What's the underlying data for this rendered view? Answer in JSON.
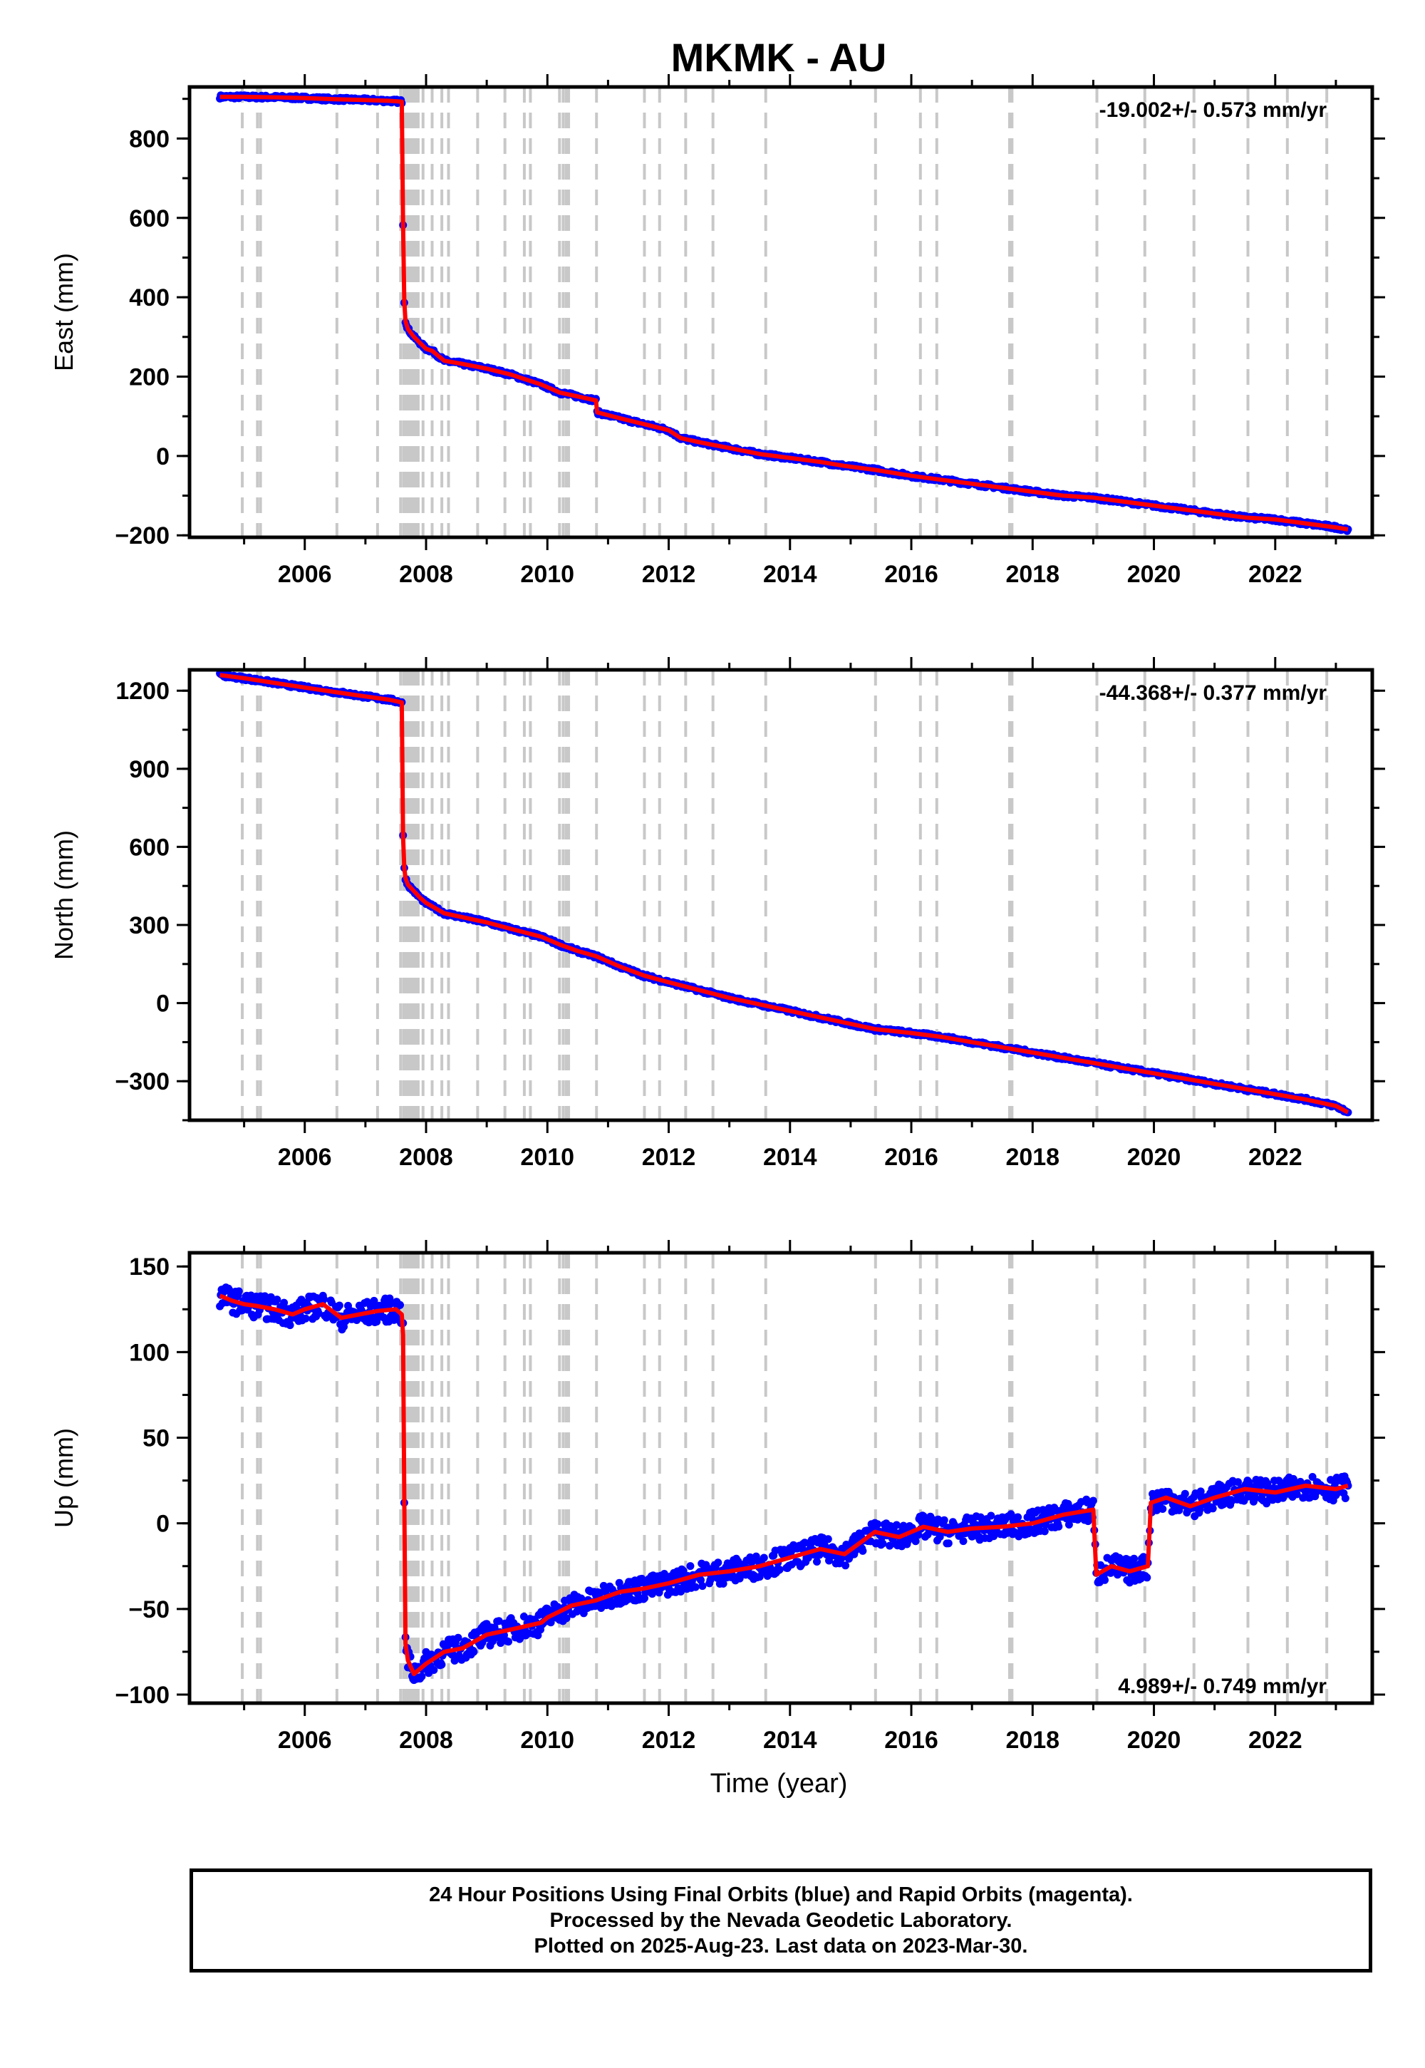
{
  "title": "MKMK - AU",
  "xlabel": "Time (year)",
  "footer": {
    "line1": "24 Hour Positions Using Final Orbits (blue) and Rapid Orbits (magenta).",
    "line2": "Processed by the Nevada Geodetic Laboratory.",
    "line3": "Plotted on 2025-Aug-23. Last data on 2023-Mar-30."
  },
  "colors": {
    "points": "#0000ff",
    "model": "#ff0000",
    "event_lines": "#c8c8c8",
    "frame": "#000000"
  },
  "chart_data": [
    {
      "type": "scatter",
      "panel": "east",
      "ylabel": "East (mm)",
      "rate": "-19.002+/- 0.573 mm/yr",
      "xlim": [
        2004.1,
        2023.6
      ],
      "ylim": [
        -205,
        930
      ],
      "yticks": [
        -200,
        0,
        200,
        400,
        600,
        800
      ],
      "xticks": [
        2006,
        2008,
        2010,
        2012,
        2014,
        2016,
        2018,
        2020,
        2022
      ],
      "grid": false,
      "legend": "none",
      "series": [
        {
          "x": [
            2004.6,
            2005.0,
            2005.5,
            2006.0,
            2006.5,
            2007.0,
            2007.4,
            2007.6,
            2007.62,
            2007.64,
            2007.66,
            2007.7,
            2007.8,
            2007.9,
            2008.0,
            2008.1,
            2008.3,
            2008.6,
            2009.0,
            2009.4,
            2009.9,
            2010.2,
            2010.5,
            2010.8,
            2010.82,
            2011.2,
            2011.6,
            2012.0,
            2012.2,
            2012.5,
            2013.0,
            2013.5,
            2014.0,
            2014.5,
            2014.9,
            2015.4,
            2016.0,
            2016.5,
            2017.0,
            2017.5,
            2018.0,
            2018.5,
            2019.0,
            2019.5,
            2020.0,
            2020.5,
            2021.0,
            2021.5,
            2022.0,
            2022.5,
            2023.0,
            2023.2
          ],
          "y": [
            905,
            905,
            904,
            902,
            899,
            897,
            895,
            893,
            585,
            390,
            340,
            320,
            300,
            285,
            270,
            265,
            240,
            232,
            220,
            205,
            180,
            160,
            150,
            140,
            110,
            95,
            80,
            65,
            45,
            35,
            20,
            5,
            -5,
            -15,
            -25,
            -35,
            -50,
            -60,
            -70,
            -80,
            -90,
            -100,
            -105,
            -115,
            -125,
            -135,
            -145,
            -155,
            -160,
            -170,
            -180,
            -185
          ]
        }
      ],
      "model": {
        "x": [
          2004.6,
          2005.0,
          2005.5,
          2006.0,
          2006.5,
          2007.0,
          2007.4,
          2007.6,
          2007.62,
          2007.64,
          2007.66,
          2007.7,
          2007.8,
          2007.9,
          2008.0,
          2008.1,
          2008.3,
          2008.6,
          2009.0,
          2009.4,
          2009.9,
          2010.2,
          2010.5,
          2010.8,
          2010.82,
          2011.2,
          2011.6,
          2012.0,
          2012.2,
          2012.5,
          2013.0,
          2013.5,
          2014.0,
          2014.5,
          2014.9,
          2015.4,
          2016.0,
          2016.5,
          2017.0,
          2017.5,
          2018.0,
          2018.5,
          2019.0,
          2019.5,
          2020.0,
          2020.5,
          2021.0,
          2021.5,
          2022.0,
          2022.5,
          2023.0,
          2023.2
        ],
        "y": [
          905,
          905,
          904,
          902,
          899,
          897,
          895,
          893,
          585,
          390,
          340,
          320,
          300,
          285,
          270,
          265,
          240,
          232,
          220,
          205,
          180,
          160,
          150,
          140,
          110,
          95,
          80,
          65,
          45,
          35,
          20,
          5,
          -5,
          -15,
          -25,
          -35,
          -50,
          -60,
          -70,
          -80,
          -90,
          -100,
          -105,
          -115,
          -125,
          -135,
          -145,
          -155,
          -160,
          -170,
          -180,
          -185
        ]
      }
    },
    {
      "type": "scatter",
      "panel": "north",
      "ylabel": "North (mm)",
      "rate": "-44.368+/- 0.377 mm/yr",
      "xlim": [
        2004.1,
        2023.6
      ],
      "ylim": [
        -450,
        1280
      ],
      "yticks": [
        -300,
        0,
        300,
        600,
        900,
        1200
      ],
      "xticks": [
        2006,
        2008,
        2010,
        2012,
        2014,
        2016,
        2018,
        2020,
        2022
      ],
      "grid": false,
      "legend": "none",
      "series": [
        {
          "x": [
            2004.6,
            2005.0,
            2005.5,
            2006.0,
            2006.5,
            2007.0,
            2007.4,
            2007.6,
            2007.62,
            2007.64,
            2007.66,
            2007.7,
            2007.8,
            2007.9,
            2008.0,
            2008.3,
            2008.6,
            2009.0,
            2009.4,
            2009.9,
            2010.2,
            2010.5,
            2010.8,
            2011.2,
            2011.6,
            2012.0,
            2012.5,
            2013.0,
            2013.5,
            2014.0,
            2014.5,
            2014.9,
            2015.4,
            2016.0,
            2016.5,
            2017.0,
            2017.5,
            2018.0,
            2018.5,
            2019.0,
            2019.5,
            2020.0,
            2020.5,
            2021.0,
            2021.5,
            2022.0,
            2022.5,
            2023.0,
            2023.2
          ],
          "y": [
            1260,
            1248,
            1230,
            1212,
            1195,
            1178,
            1165,
            1155,
            640,
            520,
            480,
            455,
            430,
            405,
            385,
            345,
            330,
            310,
            285,
            255,
            225,
            200,
            180,
            140,
            105,
            80,
            50,
            20,
            -5,
            -30,
            -55,
            -75,
            -100,
            -115,
            -130,
            -150,
            -170,
            -190,
            -210,
            -230,
            -250,
            -270,
            -290,
            -310,
            -330,
            -350,
            -370,
            -395,
            -420
          ]
        }
      ],
      "model": {
        "x": [
          2004.6,
          2005.0,
          2005.5,
          2006.0,
          2006.5,
          2007.0,
          2007.4,
          2007.6,
          2007.62,
          2007.64,
          2007.66,
          2007.7,
          2007.8,
          2007.9,
          2008.0,
          2008.3,
          2008.6,
          2009.0,
          2009.4,
          2009.9,
          2010.2,
          2010.5,
          2010.8,
          2011.2,
          2011.6,
          2012.0,
          2012.5,
          2013.0,
          2013.5,
          2014.0,
          2014.5,
          2014.9,
          2015.4,
          2016.0,
          2016.5,
          2017.0,
          2017.5,
          2018.0,
          2018.5,
          2019.0,
          2019.5,
          2020.0,
          2020.5,
          2021.0,
          2021.5,
          2022.0,
          2022.5,
          2023.0,
          2023.2
        ],
        "y": [
          1260,
          1248,
          1230,
          1212,
          1195,
          1178,
          1165,
          1155,
          640,
          520,
          480,
          455,
          430,
          405,
          385,
          345,
          330,
          310,
          285,
          255,
          225,
          200,
          180,
          140,
          105,
          80,
          50,
          20,
          -5,
          -30,
          -55,
          -75,
          -100,
          -115,
          -130,
          -150,
          -170,
          -190,
          -210,
          -230,
          -250,
          -270,
          -290,
          -310,
          -330,
          -350,
          -370,
          -395,
          -420
        ]
      }
    },
    {
      "type": "scatter",
      "panel": "up",
      "ylabel": "Up (mm)",
      "rate": "4.989+/- 0.749 mm/yr",
      "xlim": [
        2004.1,
        2023.6
      ],
      "ylim": [
        -105,
        158
      ],
      "yticks": [
        -100,
        -50,
        0,
        50,
        100,
        150
      ],
      "xticks": [
        2006,
        2008,
        2010,
        2012,
        2014,
        2016,
        2018,
        2020,
        2022
      ],
      "grid": false,
      "legend": "none",
      "series": [
        {
          "x": [
            2004.6,
            2004.8,
            2005.0,
            2005.2,
            2005.5,
            2005.8,
            2006.0,
            2006.3,
            2006.6,
            2006.9,
            2007.2,
            2007.5,
            2007.6,
            2007.62,
            2007.64,
            2007.66,
            2007.7,
            2007.8,
            2008.0,
            2008.3,
            2008.6,
            2009.0,
            2009.4,
            2009.9,
            2010.0,
            2010.4,
            2010.8,
            2011.2,
            2011.6,
            2012.0,
            2012.5,
            2013.0,
            2013.5,
            2014.0,
            2014.5,
            2014.9,
            2015.4,
            2015.8,
            2016.2,
            2016.6,
            2017.0,
            2017.5,
            2018.0,
            2018.5,
            2019.0,
            2019.05,
            2019.3,
            2019.6,
            2019.9,
            2019.95,
            2020.2,
            2020.6,
            2021.0,
            2021.5,
            2022.0,
            2022.5,
            2023.0,
            2023.2
          ],
          "y": [
            133,
            130,
            128,
            127,
            125,
            122,
            125,
            128,
            120,
            122,
            124,
            125,
            122,
            110,
            15,
            -70,
            -80,
            -88,
            -82,
            -75,
            -73,
            -65,
            -62,
            -58,
            -55,
            -48,
            -45,
            -40,
            -38,
            -35,
            -30,
            -28,
            -25,
            -20,
            -15,
            -18,
            -5,
            -8,
            -2,
            -5,
            -3,
            -2,
            0,
            5,
            8,
            -30,
            -25,
            -28,
            -25,
            12,
            15,
            10,
            15,
            20,
            18,
            22,
            20,
            22
          ]
        }
      ],
      "model": {
        "x": [
          2004.6,
          2004.8,
          2005.0,
          2005.2,
          2005.5,
          2005.8,
          2006.0,
          2006.3,
          2006.6,
          2006.9,
          2007.2,
          2007.5,
          2007.6,
          2007.62,
          2007.64,
          2007.66,
          2007.7,
          2007.8,
          2008.0,
          2008.3,
          2008.6,
          2009.0,
          2009.4,
          2009.9,
          2010.0,
          2010.4,
          2010.8,
          2011.2,
          2011.6,
          2012.0,
          2012.5,
          2013.0,
          2013.5,
          2014.0,
          2014.5,
          2014.9,
          2015.4,
          2015.8,
          2016.2,
          2016.6,
          2017.0,
          2017.5,
          2018.0,
          2018.5,
          2019.0,
          2019.05,
          2019.3,
          2019.6,
          2019.9,
          2019.95,
          2020.2,
          2020.6,
          2021.0,
          2021.5,
          2022.0,
          2022.5,
          2023.0,
          2023.2
        ],
        "y": [
          133,
          130,
          128,
          127,
          125,
          122,
          125,
          128,
          120,
          122,
          124,
          125,
          122,
          110,
          15,
          -70,
          -80,
          -88,
          -82,
          -75,
          -73,
          -65,
          -62,
          -58,
          -55,
          -48,
          -45,
          -40,
          -38,
          -35,
          -30,
          -28,
          -25,
          -20,
          -15,
          -18,
          -5,
          -8,
          -2,
          -5,
          -3,
          -2,
          0,
          5,
          8,
          -30,
          -25,
          -28,
          -25,
          12,
          15,
          10,
          15,
          20,
          18,
          22,
          20,
          22
        ]
      }
    }
  ],
  "event_lines_years": [
    2004.97,
    2005.22,
    2005.27,
    2006.53,
    2007.2,
    2007.58,
    2007.63,
    2007.67,
    2007.71,
    2007.75,
    2007.79,
    2007.83,
    2007.87,
    2007.95,
    2008.1,
    2008.26,
    2008.37,
    2008.85,
    2009.3,
    2009.62,
    2009.72,
    2010.2,
    2010.26,
    2010.31,
    2010.35,
    2010.81,
    2011.6,
    2011.85,
    2012.28,
    2012.73,
    2013.6,
    2015.41,
    2016.15,
    2016.42,
    2017.62,
    2017.66,
    2019.06,
    2019.85,
    2020.66,
    2021.55,
    2022.2,
    2022.85
  ]
}
